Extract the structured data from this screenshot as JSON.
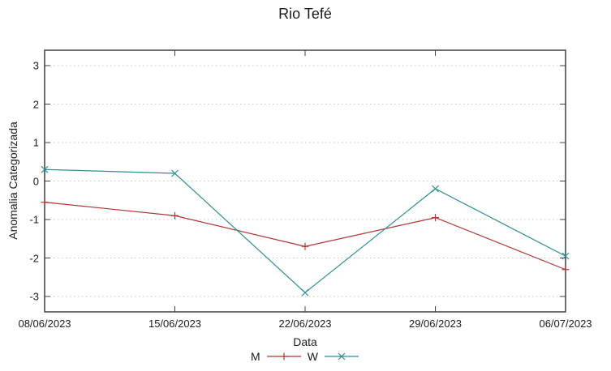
{
  "title": "Rio Tefé",
  "chart_data": {
    "type": "line",
    "x": [
      "08/06/2023",
      "15/06/2023",
      "22/06/2023",
      "29/06/2023",
      "06/07/2023"
    ],
    "series": [
      {
        "name": "M",
        "color": "#b23434",
        "marker": "plus",
        "values": [
          -0.55,
          -0.9,
          -1.7,
          -0.95,
          -2.3
        ]
      },
      {
        "name": "W",
        "color": "#2f8e8e",
        "marker": "cross",
        "values": [
          0.3,
          0.2,
          -2.9,
          -0.2,
          -1.95
        ]
      }
    ],
    "xlabel": "Data",
    "ylabel": "Anomalia Categorizada",
    "yticks": [
      -3,
      -2,
      -1,
      0,
      1,
      2,
      3
    ],
    "ylim": [
      -3.4,
      3.4
    ],
    "grid": true,
    "legend_position": "below-plot"
  },
  "colors": {
    "axis": "#404040",
    "grid": "#c6c6c6",
    "text": "#1c1c1c",
    "background": "#ffffff"
  }
}
